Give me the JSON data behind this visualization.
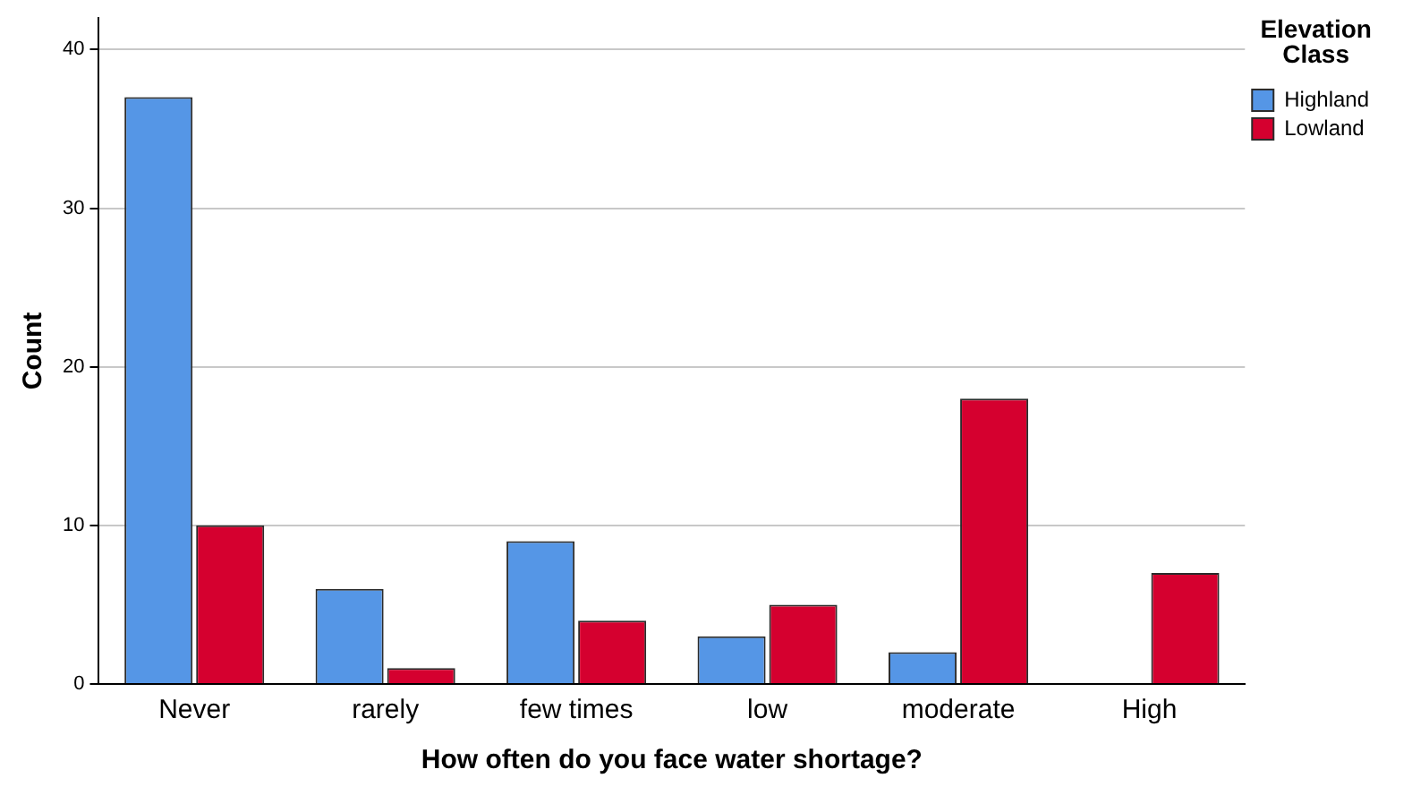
{
  "chart_data": {
    "type": "bar",
    "xlabel": "How often do you face water shortage?",
    "ylabel": "Count",
    "legend_title": "Elevation Class",
    "categories": [
      "Never",
      "rarely",
      "few times",
      "low",
      "moderate",
      "High"
    ],
    "series": [
      {
        "name": "Highland",
        "color": "#5596e6",
        "values": [
          37,
          6,
          9,
          3,
          2,
          null
        ]
      },
      {
        "name": "Lowland",
        "color": "#d5002f",
        "values": [
          10,
          1,
          4,
          5,
          18,
          7
        ]
      }
    ],
    "ylim": [
      0,
      42
    ],
    "yticks": [
      0,
      10,
      20,
      30,
      40
    ],
    "grid": "y",
    "legend": "top right"
  }
}
